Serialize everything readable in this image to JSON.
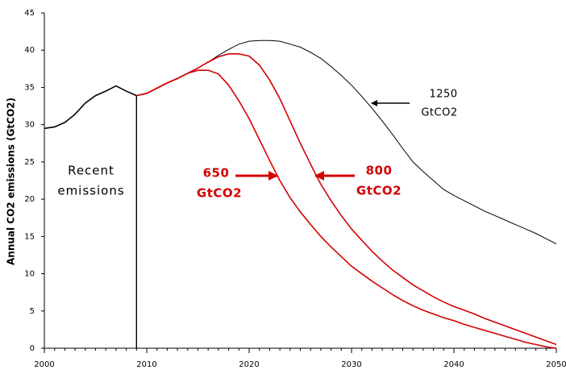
{
  "chart_data": {
    "type": "line",
    "y_label": "Annual CO2 emissions (GtCO2)",
    "x": [
      2000,
      2001,
      2002,
      2003,
      2004,
      2005,
      2006,
      2007,
      2008,
      2009,
      2010,
      2011,
      2012,
      2013,
      2014,
      2015,
      2016,
      2017,
      2018,
      2019,
      2020,
      2021,
      2022,
      2023,
      2024,
      2025,
      2026,
      2027,
      2028,
      2029,
      2030,
      2031,
      2032,
      2033,
      2034,
      2035,
      2036,
      2037,
      2038,
      2039,
      2040,
      2041,
      2042,
      2043,
      2044,
      2045,
      2046,
      2047,
      2048,
      2049,
      2050
    ],
    "xlim": [
      2000,
      2050
    ],
    "xticks": [
      2000,
      2010,
      2020,
      2030,
      2040,
      2050
    ],
    "ylim": [
      0,
      45
    ],
    "yticks": [
      0,
      5,
      10,
      15,
      20,
      25,
      30,
      35,
      40,
      45
    ],
    "grid": false,
    "series": [
      {
        "color": "#000000",
        "values": [
          29.5,
          29.7,
          30.3,
          31.4,
          32.9,
          33.9,
          34.5,
          35.2,
          34.5,
          33.9,
          null,
          null,
          null,
          null,
          null,
          null,
          null,
          null,
          null,
          null,
          null,
          null,
          null,
          null,
          null,
          null,
          null,
          null,
          null,
          null,
          null,
          null,
          null,
          null,
          null,
          null,
          null,
          null,
          null,
          null,
          null,
          null,
          null,
          null,
          null,
          null,
          null,
          null,
          null,
          null,
          null
        ]
      },
      {
        "color": "#000000",
        "values": [
          null,
          null,
          null,
          null,
          null,
          null,
          null,
          null,
          null,
          33.9,
          34.2,
          34.9,
          35.6,
          36.2,
          36.9,
          37.6,
          38.4,
          39.3,
          40.1,
          40.8,
          41.2,
          41.3,
          41.3,
          41.2,
          40.8,
          40.4,
          39.7,
          38.9,
          37.8,
          36.6,
          35.3,
          33.8,
          32.2,
          30.5,
          28.7,
          26.8,
          25.0,
          23.7,
          22.5,
          21.3,
          20.5,
          19.8,
          19.1,
          18.4,
          17.8,
          17.2,
          16.6,
          16.0,
          15.4,
          14.7,
          14.0
        ]
      },
      {
        "color": "#d40000",
        "values": [
          null,
          null,
          null,
          null,
          null,
          null,
          null,
          null,
          null,
          33.9,
          34.2,
          34.9,
          35.6,
          36.2,
          36.9,
          37.6,
          38.4,
          39.1,
          39.5,
          39.5,
          39.2,
          38.0,
          36.0,
          33.5,
          30.5,
          27.5,
          24.7,
          22.0,
          19.8,
          17.8,
          16.0,
          14.5,
          13.0,
          11.7,
          10.5,
          9.5,
          8.5,
          7.7,
          6.9,
          6.2,
          5.6,
          5.1,
          4.6,
          4.0,
          3.5,
          3.0,
          2.5,
          2.0,
          1.5,
          1.0,
          0.5
        ]
      },
      {
        "color": "#d40000",
        "values": [
          null,
          null,
          null,
          null,
          null,
          null,
          null,
          null,
          null,
          33.9,
          34.2,
          34.9,
          35.6,
          36.2,
          36.9,
          37.3,
          37.3,
          36.8,
          35.3,
          33.2,
          30.8,
          28.0,
          25.2,
          22.5,
          20.2,
          18.3,
          16.6,
          15.0,
          13.6,
          12.3,
          11.0,
          10.0,
          9.0,
          8.1,
          7.2,
          6.4,
          5.7,
          5.1,
          4.6,
          4.1,
          3.7,
          3.2,
          2.8,
          2.4,
          2.0,
          1.6,
          1.2,
          0.8,
          0.5,
          0.2,
          0.0
        ]
      }
    ],
    "annotations": [
      {
        "lines": [
          "Recent",
          "emissions"
        ]
      },
      {
        "lines": [
          "650",
          "GtCO2"
        ]
      },
      {
        "lines": [
          "800",
          "GtCO2"
        ]
      },
      {
        "lines": [
          "1250",
          "GtCO2"
        ]
      }
    ]
  }
}
